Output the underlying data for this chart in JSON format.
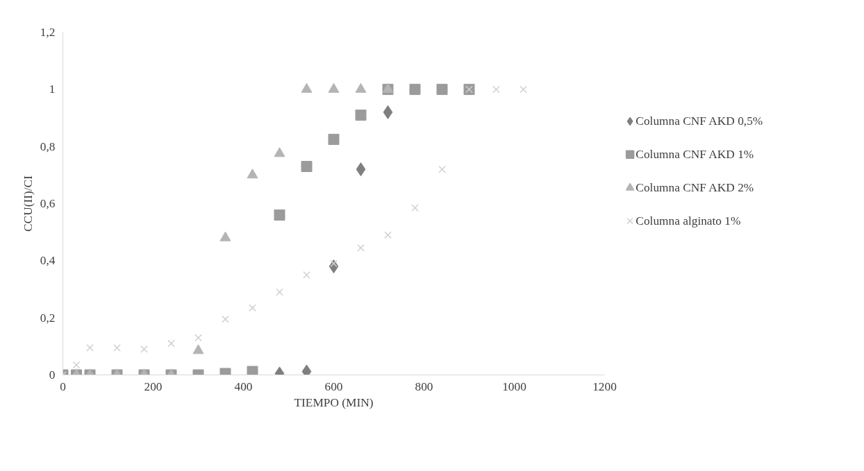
{
  "chart_data": {
    "type": "scatter",
    "xlabel": "TIEMPO (MIN)",
    "ylabel": "CCU(II)/CI",
    "xlim": [
      0,
      1200
    ],
    "ylim": [
      0,
      1.2
    ],
    "xticks": [
      0,
      200,
      400,
      600,
      800,
      1000,
      1200
    ],
    "yticks": [
      {
        "value": 0,
        "label": "0"
      },
      {
        "value": 0.2,
        "label": "0,2"
      },
      {
        "value": 0.4,
        "label": "0,4"
      },
      {
        "value": 0.6,
        "label": "0,6"
      },
      {
        "value": 0.8,
        "label": "0,8"
      },
      {
        "value": 1,
        "label": "1"
      },
      {
        "value": 1.2,
        "label": "1,2"
      }
    ],
    "grid": false,
    "legend": "right",
    "series": [
      {
        "name": "Columna CNF AKD 0,5%",
        "color": "#7f7f7f",
        "marker": "diamond",
        "x": [
          480,
          540,
          600,
          660,
          720
        ],
        "values": [
          0.005,
          0.012,
          0.38,
          0.72,
          0.92
        ]
      },
      {
        "name": "Columna CNF AKD 1%",
        "color": "#9b9b9b",
        "marker": "square",
        "x": [
          0,
          30,
          60,
          120,
          180,
          240,
          300,
          360,
          420,
          480,
          540,
          600,
          660,
          720,
          780,
          840,
          900
        ],
        "values": [
          0,
          0,
          0,
          0,
          0,
          0,
          0,
          0.005,
          0.012,
          0.56,
          0.73,
          0.825,
          0.91,
          1,
          1,
          1,
          1
        ]
      },
      {
        "name": "Columna CNF AKD 2%",
        "color": "#b4b4b4",
        "marker": "triangle",
        "x": [
          30,
          60,
          120,
          180,
          240,
          300,
          360,
          420,
          480,
          540,
          600,
          660,
          720
        ],
        "values": [
          0,
          0,
          0,
          0,
          0,
          0.085,
          0.48,
          0.7,
          0.775,
          1,
          1,
          1,
          1
        ]
      },
      {
        "name": "Columna alginato 1%",
        "color": "#d0d0d0",
        "marker": "cross",
        "x": [
          0,
          30,
          60,
          120,
          180,
          240,
          300,
          360,
          420,
          480,
          540,
          600,
          660,
          720,
          780,
          840,
          900,
          960,
          1020
        ],
        "values": [
          0,
          0.035,
          0.095,
          0.095,
          0.09,
          0.11,
          0.13,
          0.195,
          0.235,
          0.29,
          0.35,
          0.39,
          0.445,
          0.49,
          0.585,
          0.72,
          1,
          1,
          1
        ]
      }
    ]
  }
}
